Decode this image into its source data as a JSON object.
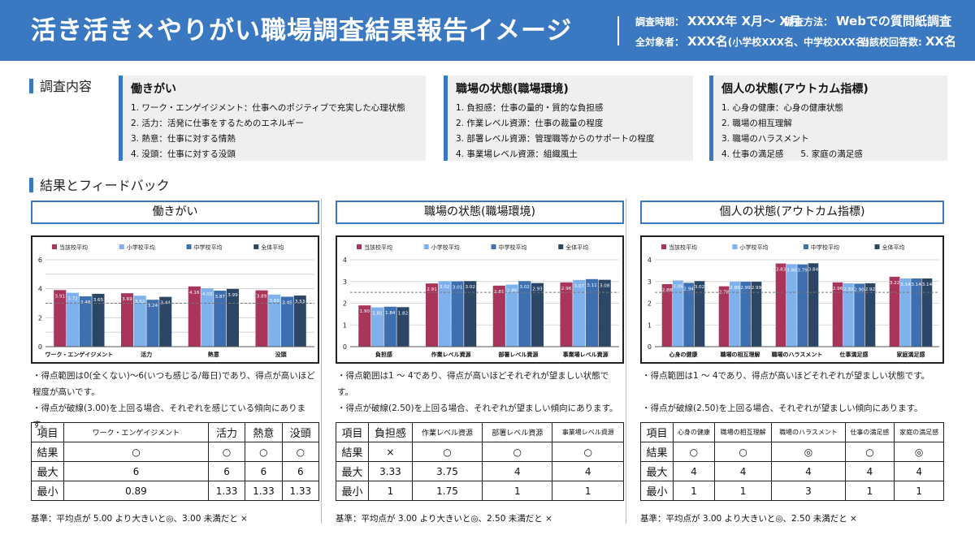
{
  "header": {
    "title": "活き活き×やりがい職場調査結果報告イメージ",
    "period_label": "調査時期：",
    "period_value": "XXXX年 X月～ X月",
    "method_label": "調査方法：",
    "method_value": "Webでの質問紙調査",
    "subjects_label": "全対象者：",
    "subjects_value": "XXX名",
    "subjects_detail": "(小学校XXX名、中学校XXX名)",
    "answers_label": "当該校回答数:",
    "answers_value": "XX名"
  },
  "survey": {
    "heading": "調査内容",
    "boxes": [
      {
        "title": "働きがい",
        "items": [
          "1. ワーク・エンゲイジメント：仕事へのポジティブで充実した心理状態",
          "2. 活力：活発に仕事をするためのエネルギー",
          "3. 熱意：仕事に対する情熱",
          "4. 没頭：仕事に対する没頭"
        ]
      },
      {
        "title": "職場の状態(職場環境)",
        "items": [
          "1. 負担感：仕事の量的・質的な負担感",
          "2. 作業レベル資源：仕事の裁量の程度",
          "3. 部署レベル資源：管理職等からのサポートの程度",
          "4. 事業場レベル資源：組織風土"
        ]
      },
      {
        "title": "個人の状態(アウトカム指標)",
        "items": [
          "1. 心身の健康：心身の健康状態",
          "2. 職場の相互理解",
          "3. 職場のハラスメント",
          "4. 仕事の満足感　　5. 家庭の満足感"
        ]
      }
    ]
  },
  "results_heading": "結果とフィードバック",
  "colors": {
    "s0": "#a8355a",
    "s1": "#7fb2ec",
    "s2": "#3e6fb0",
    "s3": "#2c4666",
    "accent": "#3a78c2"
  },
  "legend": [
    "当該校平均",
    "小学校平均",
    "中学校平均",
    "全体平均"
  ],
  "sections": [
    {
      "title": "働きがい",
      "notes": [
        "・得点範囲は0(全くない)～6(いつも感じる/毎日)であり、得点が高いほど程度が高いです。",
        "・得点が破線(3.00)を上回る場合、それぞれを感じている傾向にあります。"
      ],
      "table": {
        "head_label": "項目",
        "head": [
          "ワーク・エンゲイジメント",
          "活力",
          "熱意",
          "没頭"
        ],
        "head_size": [
          9,
          13,
          13,
          13
        ],
        "rows": [
          {
            "label": "結果",
            "cells": [
              "○",
              "○",
              "○",
              "○"
            ]
          },
          {
            "label": "最大",
            "cells": [
              "6",
              "6",
              "6",
              "6"
            ]
          },
          {
            "label": "最小",
            "cells": [
              "0.89",
              "1.33",
              "1.33",
              "1.33"
            ]
          }
        ]
      },
      "criteria": "基準：平均点が 5.00 より大きいと◎、3.00 未満だと ×"
    },
    {
      "title": "職場の状態(職場環境)",
      "notes": [
        "・得点範囲は1 ～ 4であり、得点が高いほどそれぞれが望ましい状態です。",
        "・得点が破線(2.50)を上回る場合、それぞれが望ましい傾向にあります。"
      ],
      "table": {
        "head_label": "項目",
        "head": [
          "負担感",
          "作業レベル資源",
          "部署レベル資源",
          "事業場レベル資源"
        ],
        "head_size": [
          13,
          9,
          9,
          8
        ],
        "rows": [
          {
            "label": "結果",
            "cells": [
              "×",
              "○",
              "○",
              "○"
            ]
          },
          {
            "label": "最大",
            "cells": [
              "3.33",
              "3.75",
              "4",
              "4"
            ]
          },
          {
            "label": "最小",
            "cells": [
              "1",
              "1.75",
              "1",
              "1"
            ]
          }
        ]
      },
      "criteria": "基準：平均点が 3.00 より大きいと◎、2.50 未満だと ×"
    },
    {
      "title": "個人の状態(アウトカム指標)",
      "notes": [
        "・得点範囲は1 ～ 4であり、得点が高いほどそれぞれが望ましい状態です。",
        "・得点が破線(2.50)を上回る場合、それぞれが望ましい傾向にあります。"
      ],
      "table": {
        "head_label": "項目",
        "head": [
          "心身の健康",
          "職場の相互理解",
          "職場のハラスメント",
          "仕事の満足感",
          "家庭の満足感"
        ],
        "head_size": [
          8,
          8,
          8,
          8,
          8
        ],
        "rows": [
          {
            "label": "結果",
            "cells": [
              "○",
              "○",
              "◎",
              "○",
              "◎"
            ]
          },
          {
            "label": "最大",
            "cells": [
              "4",
              "4",
              "4",
              "4",
              "4"
            ]
          },
          {
            "label": "最小",
            "cells": [
              "1",
              "1",
              "3",
              "1",
              "1"
            ]
          }
        ]
      },
      "criteria": "基準：平均点が 3.00 より大きいと◎、2.50 未満だと ×"
    }
  ],
  "chart_data": [
    {
      "type": "bar",
      "categories": [
        "ワーク・エンゲイジメント",
        "活力",
        "熱意",
        "没頭"
      ],
      "series": [
        {
          "name": "当該校平均",
          "values": [
            3.91,
            3.69,
            4.16,
            3.89
          ]
        },
        {
          "name": "小学校平均",
          "values": [
            3.72,
            3.52,
            4.03,
            3.6
          ]
        },
        {
          "name": "中学校平均",
          "values": [
            3.48,
            3.24,
            3.87,
            3.45
          ]
        },
        {
          "name": "全体平均",
          "values": [
            3.65,
            3.44,
            3.99,
            3.53
          ]
        }
      ],
      "ylim": [
        0,
        6
      ],
      "yticks": [
        0,
        2,
        4,
        6
      ],
      "gridlines": [
        0,
        1,
        2,
        3,
        4,
        5,
        6
      ],
      "reference": 3.0,
      "legend_position": "top"
    },
    {
      "type": "bar",
      "categories": [
        "負担感",
        "作業レベル資源",
        "部署レベル資源",
        "事業場レベル資源"
      ],
      "series": [
        {
          "name": "当該校平均",
          "values": [
            1.9,
            2.91,
            2.81,
            2.96
          ]
        },
        {
          "name": "小学校平均",
          "values": [
            1.81,
            3.02,
            2.86,
            3.07
          ]
        },
        {
          "name": "中学校平均",
          "values": [
            1.84,
            3.01,
            3.02,
            3.11
          ]
        },
        {
          "name": "全体平均",
          "values": [
            1.82,
            3.02,
            2.93,
            3.08
          ]
        }
      ],
      "ylim": [
        0,
        4
      ],
      "yticks": [
        0,
        1,
        2,
        3,
        4
      ],
      "gridlines": [
        0,
        1,
        2,
        3,
        4
      ],
      "reference": 2.5,
      "legend_position": "top"
    },
    {
      "type": "bar",
      "categories": [
        "心身の健康",
        "職場の相互理解",
        "職場のハラスメント",
        "仕事満足感",
        "家庭満足感"
      ],
      "series": [
        {
          "name": "当該校平均",
          "values": [
            2.88,
            2.78,
            3.83,
            2.96,
            3.22
          ]
        },
        {
          "name": "小学校平均",
          "values": [
            3.05,
            2.99,
            3.8,
            2.92,
            3.14
          ]
        },
        {
          "name": "中学校平均",
          "values": [
            2.94,
            2.99,
            3.79,
            2.9,
            3.14
          ]
        },
        {
          "name": "全体平均",
          "values": [
            3.02,
            2.99,
            3.84,
            2.92,
            3.14
          ]
        }
      ],
      "ylim": [
        0,
        4
      ],
      "yticks": [
        0,
        1,
        2,
        3,
        4
      ],
      "gridlines": [
        0,
        1,
        2,
        3,
        4
      ],
      "reference": 2.5,
      "legend_position": "top"
    }
  ]
}
